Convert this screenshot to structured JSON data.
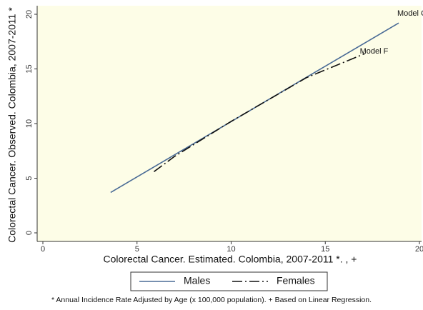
{
  "chart_data": {
    "type": "line",
    "x_label": "Colorectal Cancer. Estimated. Colombia, 2007-2011 *. , +",
    "y_label": "Colorectal Cancer. Observed. Colombia, 2007-2011 *",
    "note": "* Annual Incidence Rate Adjusted by Age (x 100,000 population). + Based on Linear Regression.",
    "series": [
      {
        "name": "Males",
        "color": "#4a6b96",
        "dash": "solid",
        "end_label": "Model C",
        "x": [
          3.6,
          18.9
        ],
        "values": [
          3.7,
          19.2
        ]
      },
      {
        "name": "Females",
        "color": "#111111",
        "dash": "dashdot",
        "end_label": "Model F",
        "x": [
          5.9,
          7,
          10,
          14,
          17.1
        ],
        "values": [
          5.6,
          7,
          10.2,
          14.2,
          16.4
        ]
      }
    ],
    "xlim": [
      0,
      20
    ],
    "xticks": [
      0,
      5,
      10,
      15,
      20
    ],
    "ylim": [
      0,
      20
    ],
    "yticks": [
      0,
      5,
      10,
      15,
      20
    ],
    "grid": false
  }
}
